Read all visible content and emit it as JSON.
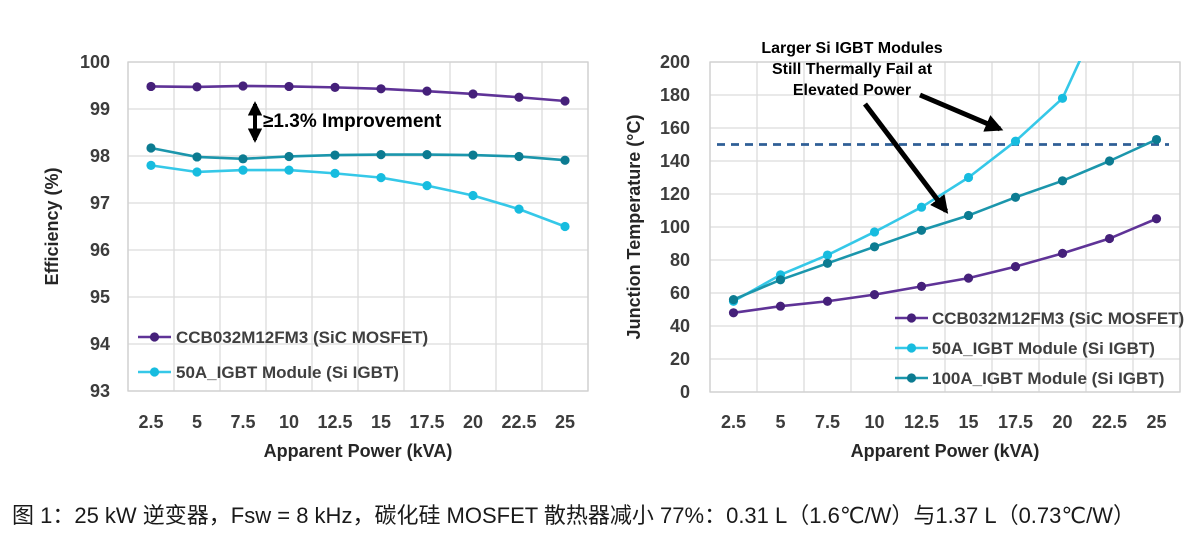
{
  "figure": {
    "caption": "图 1：25 kW 逆变器，Fsw = 8 kHz，碳化硅 MOSFET 散热器减小 77%：0.31 L（1.6℃/W）与1.37 L（0.73℃/W）"
  },
  "colors": {
    "purple_line": "#5f3397",
    "purple_marker": "#45207a",
    "cyan_line": "#35c8e8",
    "cyan_marker": "#17bcdf",
    "teal_line": "#1b96ac",
    "teal_marker": "#0c7b91",
    "grid": "#dcdcdc",
    "plot_border": "#cfcfcf",
    "dashed_limit_line": "#2f5f96",
    "tick_text": "#3c3c3c",
    "axis_title_text": "#262626",
    "legend_text": "#3f3f3f",
    "annotation_text": "#000000"
  },
  "chart_data": [
    {
      "type": "line",
      "title": "",
      "xlabel": "Apparent Power (kVA)",
      "ylabel": "Efficiency (%)",
      "x": [
        2.5,
        5,
        7.5,
        10,
        12.5,
        15,
        17.5,
        20,
        22.5,
        25
      ],
      "ylim": [
        93,
        100
      ],
      "ytick_step": 1,
      "grid": true,
      "legend_position": "inside-bottom-left",
      "annotation": {
        "text": "≥1.3% Improvement",
        "arrow": "double-headed-vertical",
        "between": [
          "CCB032M12FM3 (SiC MOSFET)",
          "100A_IGBT Module (Si IGBT)"
        ],
        "near_x": 8
      },
      "series": [
        {
          "name": "CCB032M12FM3 (SiC MOSFET)",
          "color_key": "purple",
          "in_legend": true,
          "values": [
            99.48,
            99.47,
            99.49,
            99.48,
            99.46,
            99.43,
            99.38,
            99.32,
            99.25,
            99.17
          ]
        },
        {
          "name": "100A_IGBT Module (Si IGBT)",
          "color_key": "teal",
          "in_legend": false,
          "values": [
            98.17,
            97.98,
            97.94,
            97.99,
            98.02,
            98.03,
            98.03,
            98.02,
            97.99,
            97.91
          ]
        },
        {
          "name": "50A_IGBT Module (Si IGBT)",
          "color_key": "cyan",
          "in_legend": true,
          "values": [
            97.8,
            97.66,
            97.7,
            97.7,
            97.63,
            97.54,
            97.37,
            97.16,
            96.87,
            96.5
          ]
        }
      ]
    },
    {
      "type": "line",
      "title": "",
      "xlabel": "Apparent Power (kVA)",
      "ylabel": "Junction Temperature (°C)",
      "x": [
        2.5,
        5,
        7.5,
        10,
        12.5,
        15,
        17.5,
        20,
        22.5,
        25
      ],
      "ylim": [
        0,
        200
      ],
      "ytick_step": 20,
      "grid": true,
      "legend_position": "inside-bottom-right",
      "dashed_hline": 150,
      "annotation": {
        "lines": [
          "Larger Si IGBT Modules",
          "Still Thermally Fail at",
          "Elevated Power"
        ],
        "arrows": 2
      },
      "series": [
        {
          "name": "CCB032M12FM3 (SiC MOSFET)",
          "color_key": "purple",
          "in_legend": true,
          "values": [
            48,
            52,
            55,
            59,
            64,
            69,
            76,
            84,
            93,
            105
          ]
        },
        {
          "name": "50A_IGBT Module (Si IGBT)",
          "color_key": "cyan",
          "in_legend": true,
          "values": [
            55,
            71,
            83,
            97,
            112,
            130,
            152,
            178,
            null,
            null
          ],
          "overflow_point": {
            "x": 22.5,
            "y": 240
          }
        },
        {
          "name": "100A_IGBT Module (Si IGBT)",
          "color_key": "teal",
          "in_legend": true,
          "values": [
            56,
            68,
            78,
            88,
            98,
            107,
            118,
            128,
            140,
            153
          ]
        }
      ]
    }
  ]
}
